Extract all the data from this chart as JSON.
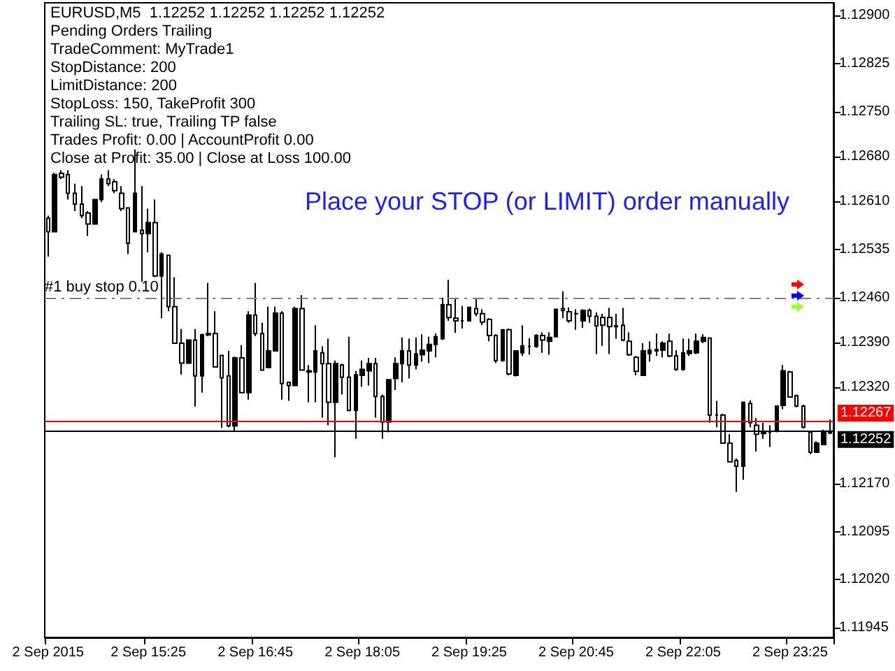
{
  "chart_data": {
    "type": "candlestick",
    "title": "EURUSD,M5  1.12252 1.12252 1.12252 1.12252",
    "subtitle": "Place your STOP (or LIMIT) order manually",
    "annotations": [
      "Pending Orders Trailing",
      "TradeComment: MyTrade1",
      "StopDistance: 200",
      "LimitDistance: 200",
      "StopLoss: 150, TakeProfit 300",
      "Trailing SL: true, Trailing TP false",
      "Trades Profit: 0.00 | AccountProfit 0.00",
      "Close at Profit: 35.00 | Close at Loss 100.00"
    ],
    "color": "#000000",
    "categories": [
      "2 Sep 2015",
      null,
      null,
      null,
      null,
      null,
      null,
      null,
      null,
      null,
      null,
      null,
      null,
      null,
      null,
      "2 Sep 15:25",
      null,
      null,
      null,
      null,
      null,
      null,
      null,
      null,
      null,
      null,
      null,
      null,
      null,
      null,
      null,
      "2 Sep 16:45",
      null,
      null,
      null,
      null,
      null,
      null,
      null,
      null,
      null,
      null,
      null,
      null,
      null,
      null,
      null,
      "2 Sep 18:05",
      null,
      null,
      null,
      null,
      null,
      null,
      null,
      null,
      null,
      null,
      null,
      null,
      null,
      null,
      null,
      "2 Sep 19:25",
      null,
      null,
      null,
      null,
      null,
      null,
      null,
      null,
      null,
      null,
      null,
      null,
      null,
      null,
      null,
      "2 Sep 20:45",
      null,
      null,
      null,
      null,
      null,
      null,
      null,
      null,
      null,
      null,
      null,
      null,
      null,
      null,
      null,
      "2 Sep 22:05",
      null,
      null,
      null,
      null,
      null,
      null,
      null,
      null,
      null,
      null,
      null,
      null,
      null,
      null,
      null,
      "2 Sep 23:25",
      null,
      null,
      null,
      null,
      null,
      null
    ],
    "ohlc": [
      [
        1.12584,
        1.12588,
        1.12524,
        1.12563
      ],
      [
        1.12563,
        1.12655,
        1.12563,
        1.12652
      ],
      [
        1.12654,
        1.12659,
        1.12645,
        1.12648
      ],
      [
        1.12652,
        1.12659,
        1.12613,
        1.12623
      ],
      [
        1.12623,
        1.12638,
        1.12595,
        1.12606
      ],
      [
        1.12606,
        1.12634,
        1.12584,
        1.12588
      ],
      [
        1.12592,
        1.12595,
        1.12556,
        1.12575
      ],
      [
        1.12575,
        1.12613,
        1.12574,
        1.12613
      ],
      [
        1.12613,
        1.12652,
        1.12609,
        1.12645
      ],
      [
        1.12645,
        1.12659,
        1.12634,
        1.12638
      ],
      [
        1.12641,
        1.12645,
        1.12623,
        1.12627
      ],
      [
        1.12623,
        1.12634,
        1.12595,
        1.12599
      ],
      [
        1.126,
        1.126,
        1.12528,
        1.12545
      ],
      [
        1.12563,
        1.12691,
        1.12563,
        1.12623
      ],
      [
        1.12565,
        1.12634,
        1.12485,
        1.1256
      ],
      [
        1.1256,
        1.12599,
        1.12531,
        1.12577
      ],
      [
        1.12577,
        1.12613,
        1.12492,
        1.12494
      ],
      [
        1.12494,
        1.12531,
        1.12428,
        1.12528
      ],
      [
        1.12526,
        1.12526,
        1.12439,
        1.12446
      ],
      [
        1.12446,
        1.12492,
        1.12389,
        1.12389
      ],
      [
        1.12389,
        1.12411,
        1.1234,
        1.12358
      ],
      [
        1.12358,
        1.12394,
        1.12358,
        1.12394
      ],
      [
        1.12394,
        1.12411,
        1.1229,
        1.12338
      ],
      [
        1.12338,
        1.12404,
        1.12312,
        1.12402
      ],
      [
        1.12402,
        1.12483,
        1.124,
        1.12404
      ],
      [
        1.12404,
        1.12439,
        1.12352,
        1.12352
      ],
      [
        1.1237,
        1.1237,
        1.12257,
        1.12335
      ],
      [
        1.12338,
        1.12377,
        1.12258,
        1.1226
      ],
      [
        1.1226,
        1.12368,
        1.12251,
        1.12366
      ],
      [
        1.12366,
        1.12386,
        1.12312,
        1.12312
      ],
      [
        1.12312,
        1.12439,
        1.12301,
        1.12433
      ],
      [
        1.12433,
        1.12483,
        1.124,
        1.12404
      ],
      [
        1.12404,
        1.12421,
        1.12347,
        1.12347
      ],
      [
        1.12351,
        1.12446,
        1.12351,
        1.12377
      ],
      [
        1.12377,
        1.12446,
        1.12377,
        1.12436
      ],
      [
        1.12436,
        1.12439,
        1.12301,
        1.12326
      ],
      [
        1.12328,
        1.12329,
        1.12299,
        1.12323
      ],
      [
        1.12323,
        1.12446,
        1.12323,
        1.12443
      ],
      [
        1.12443,
        1.12464,
        1.12347,
        1.12347
      ],
      [
        1.12346,
        1.12355,
        1.12297,
        1.12344
      ],
      [
        1.12344,
        1.12417,
        1.12297,
        1.12377
      ],
      [
        1.12374,
        1.12384,
        1.12273,
        1.12357
      ],
      [
        1.12357,
        1.12396,
        1.12261,
        1.12297
      ],
      [
        1.12297,
        1.12362,
        1.12211,
        1.12357
      ],
      [
        1.12355,
        1.12357,
        1.12309,
        1.12336
      ],
      [
        1.12336,
        1.12399,
        1.12284,
        1.12284
      ],
      [
        1.12284,
        1.12346,
        1.1224,
        1.1234
      ],
      [
        1.12339,
        1.12362,
        1.12321,
        1.12348
      ],
      [
        1.12346,
        1.12366,
        1.12323,
        1.12357
      ],
      [
        1.12357,
        1.12366,
        1.12273,
        1.12306
      ],
      [
        1.12306,
        1.12309,
        1.1224,
        1.12266
      ],
      [
        1.12266,
        1.12332,
        1.1225,
        1.12332
      ],
      [
        1.12334,
        1.12367,
        1.12316,
        1.12357
      ],
      [
        1.12357,
        1.12398,
        1.12328,
        1.12377
      ],
      [
        1.12377,
        1.12396,
        1.12334,
        1.12355
      ],
      [
        1.12355,
        1.12398,
        1.12348,
        1.12372
      ],
      [
        1.12371,
        1.12403,
        1.1236,
        1.12378
      ],
      [
        1.12377,
        1.12399,
        1.12358,
        1.12387
      ],
      [
        1.12387,
        1.12404,
        1.12367,
        1.12399
      ],
      [
        1.12396,
        1.1246,
        1.12394,
        1.12449
      ],
      [
        1.12449,
        1.12488,
        1.12424,
        1.12429
      ],
      [
        1.12428,
        1.1246,
        1.12405,
        1.12424
      ],
      [
        1.12424,
        1.12447,
        1.12412,
        1.12424
      ],
      [
        1.12424,
        1.12445,
        1.12423,
        1.12445
      ],
      [
        1.12443,
        1.1246,
        1.12431,
        1.12435
      ],
      [
        1.12435,
        1.12442,
        1.12417,
        1.12422
      ],
      [
        1.12426,
        1.12428,
        1.12392,
        1.12401
      ],
      [
        1.12401,
        1.12403,
        1.12358,
        1.12362
      ],
      [
        1.12362,
        1.1241,
        1.1236,
        1.1241
      ],
      [
        1.1241,
        1.12412,
        1.12339,
        1.12341
      ],
      [
        1.12339,
        1.12377,
        1.12337,
        1.12377
      ],
      [
        1.12374,
        1.12417,
        1.12369,
        1.12385
      ],
      [
        1.12384,
        1.12397,
        1.12371,
        1.12384
      ],
      [
        1.12384,
        1.12403,
        1.12382,
        1.12401
      ],
      [
        1.12401,
        1.12406,
        1.12374,
        1.12394
      ],
      [
        1.12392,
        1.12406,
        1.12371,
        1.12398
      ],
      [
        1.12399,
        1.12443,
        1.12398,
        1.12442
      ],
      [
        1.12443,
        1.1247,
        1.12428,
        1.1244
      ],
      [
        1.12438,
        1.12445,
        1.12421,
        1.12424
      ],
      [
        1.12435,
        1.12442,
        1.1241,
        1.12435
      ],
      [
        1.12424,
        1.12442,
        1.12413,
        1.1244
      ],
      [
        1.1244,
        1.12443,
        1.12421,
        1.12431
      ],
      [
        1.12431,
        1.12437,
        1.12372,
        1.12416
      ],
      [
        1.12429,
        1.12435,
        1.12385,
        1.12417
      ],
      [
        1.12429,
        1.12444,
        1.12372,
        1.12415
      ],
      [
        1.12415,
        1.12435,
        1.12396,
        1.12416
      ],
      [
        1.12417,
        1.12444,
        1.12392,
        1.12394
      ],
      [
        1.12392,
        1.12406,
        1.12369,
        1.12371
      ],
      [
        1.12367,
        1.12369,
        1.12339,
        1.12345
      ],
      [
        1.12339,
        1.12389,
        1.12339,
        1.12377
      ],
      [
        1.12373,
        1.12392,
        1.1236,
        1.12378
      ],
      [
        1.12377,
        1.12404,
        1.12369,
        1.12379
      ],
      [
        1.12378,
        1.12392,
        1.12367,
        1.12389
      ],
      [
        1.12392,
        1.12404,
        1.12367,
        1.12369
      ],
      [
        1.12369,
        1.12378,
        1.12346,
        1.12348
      ],
      [
        1.12348,
        1.12396,
        1.12346,
        1.12374
      ],
      [
        1.12373,
        1.12396,
        1.12369,
        1.12377
      ],
      [
        1.12374,
        1.12404,
        1.12372,
        1.12392
      ],
      [
        1.12392,
        1.12403,
        1.12389,
        1.12398
      ],
      [
        1.12397,
        1.12397,
        1.12265,
        1.12277
      ],
      [
        1.12277,
        1.12299,
        1.12258,
        1.12277
      ],
      [
        1.12277,
        1.12279,
        1.12233,
        1.12233
      ],
      [
        1.12233,
        1.12247,
        1.12203,
        1.12204
      ],
      [
        1.12206,
        1.12209,
        1.12157,
        1.12197
      ],
      [
        1.12197,
        1.12297,
        1.12176,
        1.12297
      ],
      [
        1.12295,
        1.123,
        1.12258,
        1.12265
      ],
      [
        1.12261,
        1.12272,
        1.1222,
        1.12247
      ],
      [
        1.12248,
        1.12265,
        1.1224,
        1.1225
      ],
      [
        1.1225,
        1.12261,
        1.12227,
        1.1225
      ],
      [
        1.12252,
        1.12291,
        1.1225,
        1.12291
      ],
      [
        1.12292,
        1.12355,
        1.12286,
        1.12346
      ],
      [
        1.12344,
        1.12346,
        1.12304,
        1.12305
      ],
      [
        1.12307,
        1.12309,
        1.12289,
        1.12291
      ],
      [
        1.12291,
        1.12293,
        1.12256,
        1.12258
      ],
      [
        1.1225,
        1.12252,
        1.12216,
        1.12219
      ],
      [
        1.12219,
        1.12236,
        1.12219,
        1.12233
      ],
      [
        1.12231,
        1.12254,
        1.12231,
        1.12252
      ],
      [
        1.12249,
        1.1227,
        1.12247,
        1.12252
      ]
    ],
    "ylim": [
      1.1193,
      1.1292
    ],
    "yticks": [
      {
        "value": 1.129,
        "label": "1.12900"
      },
      {
        "value": 1.12825,
        "label": "1.12825"
      },
      {
        "value": 1.1275,
        "label": "1.12750"
      },
      {
        "value": 1.1268,
        "label": "1.12680"
      },
      {
        "value": 1.1261,
        "label": "1.12610"
      },
      {
        "value": 1.12535,
        "label": "1.12535"
      },
      {
        "value": 1.1246,
        "label": "1.12460"
      },
      {
        "value": 1.1239,
        "label": "1.12390"
      },
      {
        "value": 1.1232,
        "label": "1.12320"
      },
      {
        "value": 1.1217,
        "label": "1.12170"
      },
      {
        "value": 1.12095,
        "label": "1.12095"
      },
      {
        "value": 1.1202,
        "label": "1.12020"
      },
      {
        "value": 1.11945,
        "label": "1.11945"
      }
    ],
    "ref_lines": [
      {
        "axis": "y",
        "value": 1.1246,
        "label": "#1 buy stop 0.10",
        "color": "#808080",
        "line_style": "dashed"
      },
      {
        "axis": "y",
        "value": 1.12267,
        "label": "1.12267",
        "color": "#ff0000",
        "line_style": "solid"
      },
      {
        "axis": "y",
        "value": 1.12252,
        "label": "1.12252",
        "color": "#000000",
        "line_style": "solid"
      }
    ],
    "grid": false
  }
}
